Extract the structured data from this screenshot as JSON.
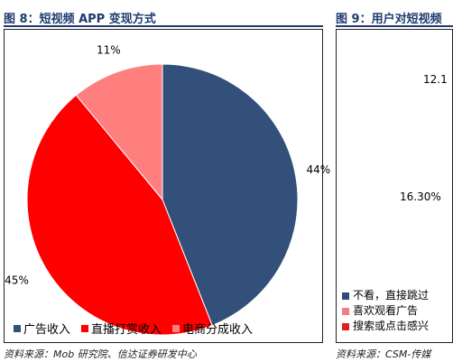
{
  "left_figure": {
    "title": "图 8：短视频 APP 变现方式",
    "source": "资料来源：Mob 研究院、信达证券研发中心"
  },
  "right_figure": {
    "title": "图 9：用户对短视频",
    "visible_values": [
      "12.1",
      "16.30%"
    ],
    "legend": [
      {
        "label": "不看，直接跳过",
        "color": "#2f4b7c"
      },
      {
        "label": "喜欢观看广告",
        "color": "#f08080"
      },
      {
        "label": "搜索或点击感兴",
        "color": "#e02020"
      }
    ],
    "source": "资料来源：CSM-传媒"
  },
  "chart_data": {
    "type": "pie",
    "title": "",
    "labels": [
      "广告收入",
      "直播打赏收入",
      "电商分成收入"
    ],
    "values": [
      44,
      45,
      11
    ],
    "value_labels": [
      "44%",
      "45%",
      "11%"
    ],
    "colors": [
      "#33507a",
      "#ff0000",
      "#ff7f7f"
    ],
    "legend_position": "bottom",
    "start_angle": "12 o'clock",
    "direction": "clockwise"
  }
}
